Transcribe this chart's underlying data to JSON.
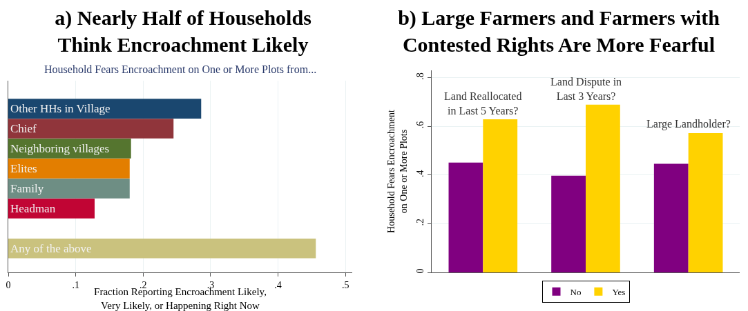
{
  "chart_data": [
    {
      "type": "bar",
      "orientation": "horizontal",
      "title": "a) Nearly Half of Households Think Encroachment Likely",
      "subtitle": "Household Fears Encroachment on One or More Plots from...",
      "xlabel": "Fraction Reporting Encroachment Likely, Very Likely, or Happening Right Now",
      "categories": [
        "Other HHs in Village",
        "Chief",
        "Neighboring villages",
        "Elites",
        "Family",
        "Headman",
        null,
        "Any of the above"
      ],
      "values": [
        0.286,
        0.245,
        0.182,
        0.18,
        0.18,
        0.128,
        null,
        0.456
      ],
      "colors": [
        "#1a476f",
        "#90353b",
        "#55752f",
        "#e37e00",
        "#6e8e84",
        "#c10534",
        "#cccccc",
        "#cac27e"
      ],
      "xlim": [
        0,
        0.51
      ],
      "xticks": [
        {
          "value": 0,
          "label": "0"
        },
        {
          "value": 0.1,
          "label": ".1"
        },
        {
          "value": 0.2,
          "label": ".2"
        },
        {
          "value": 0.3,
          "label": ".3"
        },
        {
          "value": 0.4,
          "label": ".4"
        },
        {
          "value": 0.5,
          "label": ".5"
        }
      ],
      "grid": "x",
      "legend": false,
      "tick_labels": "x"
    },
    {
      "type": "bar",
      "title": "b) Large Farmers and Farmers with Contested Rights Are More Fearful",
      "ylabel": "Household Fears Encroachment on One or More Plots",
      "categories": [
        "Land Reallocated in Last 5 Years?",
        "Land Dispute in Last 3 Years?",
        "Large Landholder?"
      ],
      "series": [
        {
          "name": "No",
          "color": "#800080",
          "values": [
            0.451,
            0.397,
            0.446
          ]
        },
        {
          "name": "Yes",
          "color": "#ffd200",
          "values": [
            0.629,
            0.689,
            0.572
          ]
        }
      ],
      "ylim": [
        0,
        0.83
      ],
      "yticks": [
        {
          "value": 0,
          "label": "0"
        },
        {
          "value": 0.2,
          "label": ".2"
        },
        {
          "value": 0.4,
          "label": ".4"
        },
        {
          "value": 0.6,
          "label": ".6"
        },
        {
          "value": 0.8,
          "label": ".8"
        }
      ],
      "grid": "y",
      "legend": "bottom",
      "tick_labels": "y"
    }
  ]
}
